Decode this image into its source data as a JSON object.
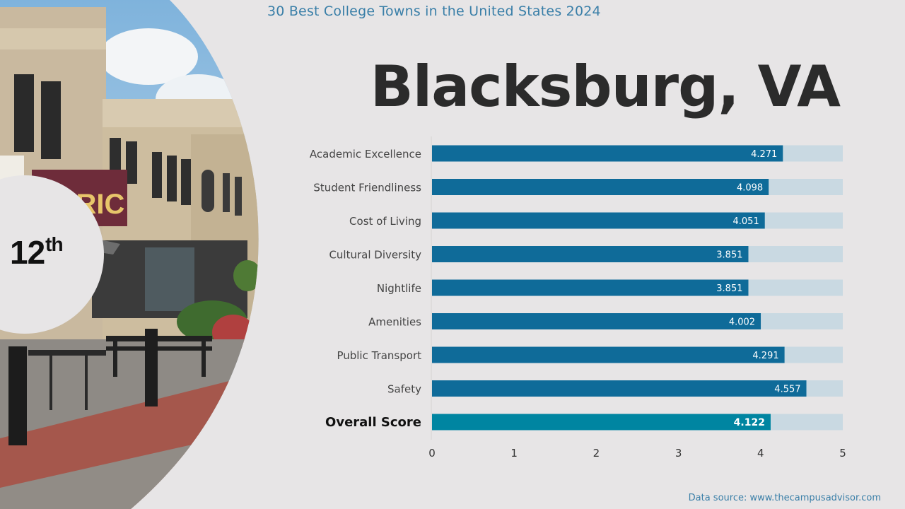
{
  "header": {
    "subtitle": "30 Best College Towns in the United States 2024",
    "city": "Blacksburg, VA",
    "rank_number": "12",
    "rank_suffix": "th"
  },
  "footer": {
    "source": "Data source: www.thecampusadvisor.com"
  },
  "colors": {
    "bar": "#0f6b99",
    "overall_bar": "#0085a1",
    "track": "#c9d9e2",
    "label": "#444444",
    "overall_label": "#111111"
  },
  "chart_data": {
    "type": "bar",
    "orientation": "horizontal",
    "categories": [
      "Academic Excellence",
      "Student Friendliness",
      "Cost of Living",
      "Cultural Diversity",
      "Nightlife",
      "Amenities",
      "Public Transport",
      "Safety",
      "Overall Score"
    ],
    "values": [
      4.271,
      4.098,
      4.051,
      3.851,
      3.851,
      4.002,
      4.291,
      4.557,
      4.122
    ],
    "value_labels": [
      "4.271",
      "4.098",
      "4.051",
      "3.851",
      "3.851",
      "4.002",
      "4.291",
      "4.557",
      "4.122"
    ],
    "highlight_category": "Overall Score",
    "xlim": [
      0,
      5
    ],
    "xticks": [
      "0",
      "1",
      "2",
      "3",
      "4",
      "5"
    ],
    "xlabel": "",
    "ylabel": "",
    "grid": false
  }
}
